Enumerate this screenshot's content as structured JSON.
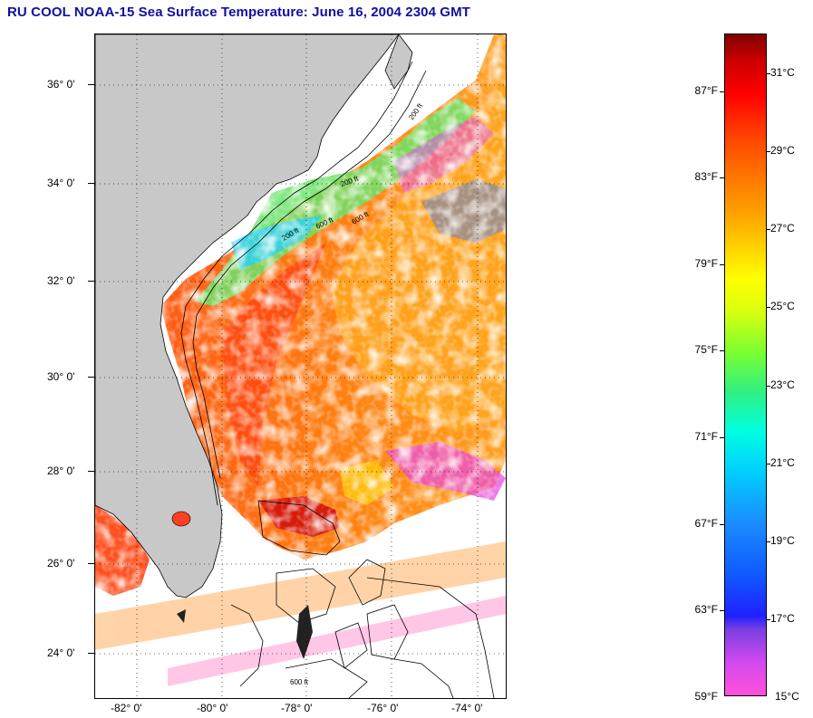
{
  "header": {
    "title": "RU COOL  NOAA-15  Sea Surface Temperature:  June 16, 2004 2304 GMT"
  },
  "map": {
    "lat_labels": [
      "36° 0'",
      "34° 0'",
      "32° 0'",
      "30° 0'",
      "28° 0'",
      "26° 0'",
      "24° 0'"
    ],
    "lon_labels": [
      "-82° 0'",
      "-80° 0'",
      "-78° 0'",
      "-76° 0'",
      "-74° 0'"
    ],
    "contour_labels": [
      "200 ft",
      "600 ft",
      "200 ft",
      "600 ft",
      "200 ft",
      "600 ft"
    ],
    "land_color": "#c8c8c8",
    "cloud_color": "#ffffff"
  },
  "colorbar": {
    "fahrenheit_labels": [
      "87°F",
      "83°F",
      "79°F",
      "75°F",
      "71°F",
      "67°F",
      "63°F",
      "59°F"
    ],
    "celsius_labels": [
      "31°C",
      "29°C",
      "27°C",
      "25°C",
      "23°C",
      "21°C",
      "19°C",
      "17°C",
      "15°C"
    ]
  }
}
